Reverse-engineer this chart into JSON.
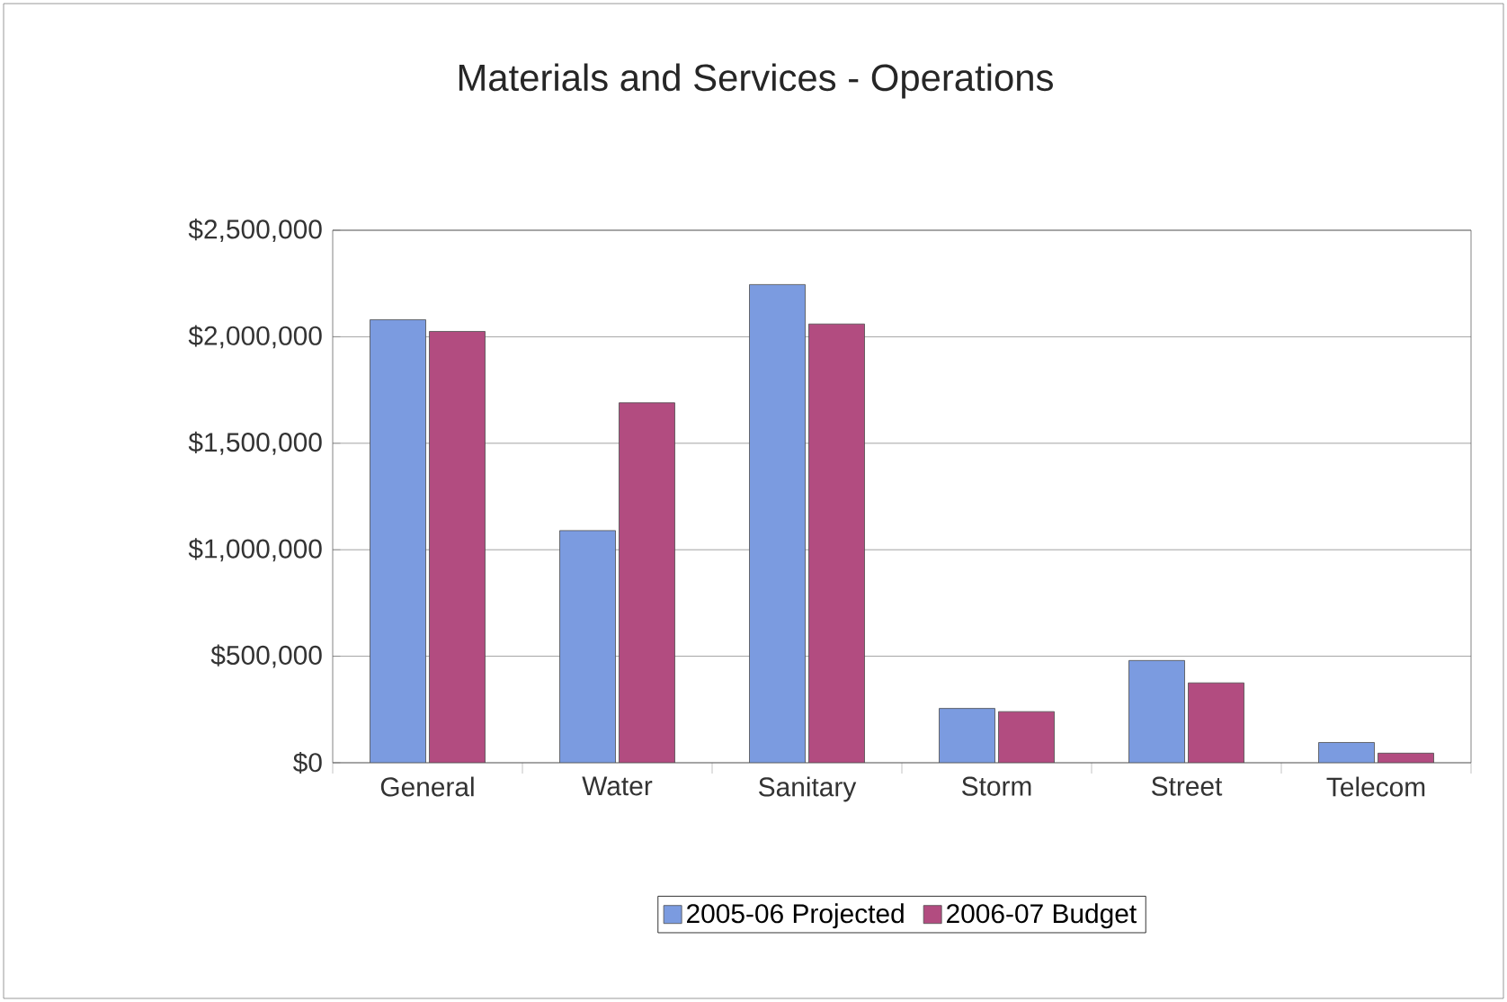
{
  "chart_data": {
    "type": "bar",
    "title": "Materials and Services - Operations",
    "categories": [
      "General",
      "Water",
      "Sanitary",
      "Storm",
      "Street",
      "Telecom"
    ],
    "series": [
      {
        "name": "2005-06 Projected",
        "color": "#7b9be0",
        "values": [
          2080000,
          1090000,
          2245000,
          255000,
          480000,
          95000
        ]
      },
      {
        "name": "2006-07 Budget",
        "color": "#b24c80",
        "values": [
          2025000,
          1690000,
          2060000,
          240000,
          375000,
          45000
        ]
      }
    ],
    "ylim": [
      0,
      2500000
    ],
    "yticks": [
      {
        "value": 0,
        "label": "$0"
      },
      {
        "value": 500000,
        "label": "$500,000"
      },
      {
        "value": 1000000,
        "label": "$1,000,000"
      },
      {
        "value": 1500000,
        "label": "$1,500,000"
      },
      {
        "value": 2000000,
        "label": "$2,000,000"
      },
      {
        "value": 2500000,
        "label": "$2,500,000"
      }
    ],
    "grid": "y",
    "legend": "bottom"
  }
}
